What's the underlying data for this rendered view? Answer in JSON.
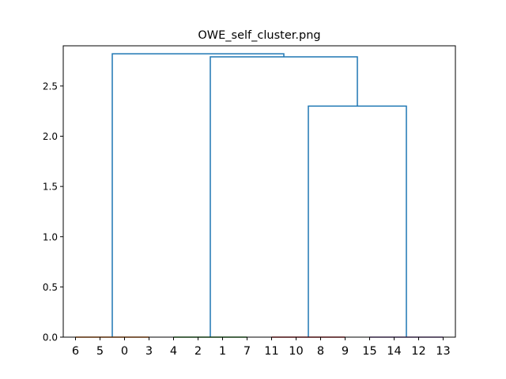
{
  "chart_data": {
    "type": "dendrogram",
    "title": "OWE_self_cluster.png",
    "xlabel": "",
    "ylabel": "",
    "ylim": [
      0,
      2.9
    ],
    "yticks": [
      0.0,
      0.5,
      1.0,
      1.5,
      2.0,
      2.5
    ],
    "ytick_labels": [
      "0.0",
      "0.5",
      "1.0",
      "1.5",
      "2.0",
      "2.5"
    ],
    "leaf_order": [
      "6",
      "5",
      "0",
      "3",
      "4",
      "2",
      "1",
      "7",
      "11",
      "10",
      "8",
      "9",
      "15",
      "14",
      "12",
      "13"
    ],
    "clusters": [
      {
        "leaves": [
          0,
          1,
          2,
          3
        ],
        "color": "#ff7f0e"
      },
      {
        "leaves": [
          4,
          5,
          6,
          7
        ],
        "color": "#2ca02c"
      },
      {
        "leaves": [
          8,
          9,
          10,
          11
        ],
        "color": "#d62728"
      },
      {
        "leaves": [
          12,
          13,
          14,
          15
        ],
        "color": "#9467bd"
      }
    ],
    "links": [
      {
        "left": {
          "leaves": [
            0,
            1,
            2,
            3
          ],
          "height": 0.0
        },
        "right": {
          "leaves": [
            4,
            5,
            6,
            7
          ],
          "height": 0.0
        },
        "height": 2.8,
        "note": "internal"
      },
      {
        "left": {
          "leaves": [
            8,
            9,
            10,
            11
          ],
          "height": 0.0
        },
        "right": {
          "leaves": [
            12,
            13,
            14,
            15
          ],
          "height": 0.0
        },
        "height": 2.3
      },
      {
        "left": {
          "leaves": [
            4,
            5,
            6,
            7
          ],
          "height": 0.0
        },
        "right": {
          "leaves": [
            8,
            9,
            10,
            11,
            12,
            13,
            14,
            15
          ],
          "height": 2.3
        },
        "height": 2.79
      },
      {
        "left": {
          "leaves": [
            0,
            1,
            2,
            3
          ],
          "height": 0.0
        },
        "right": {
          "leaves": [
            4,
            5,
            6,
            7,
            8,
            9,
            10,
            11,
            12,
            13,
            14,
            15
          ],
          "height": 2.79
        },
        "height": 2.82
      }
    ],
    "link_color": "#1f77b4",
    "grid": false
  }
}
